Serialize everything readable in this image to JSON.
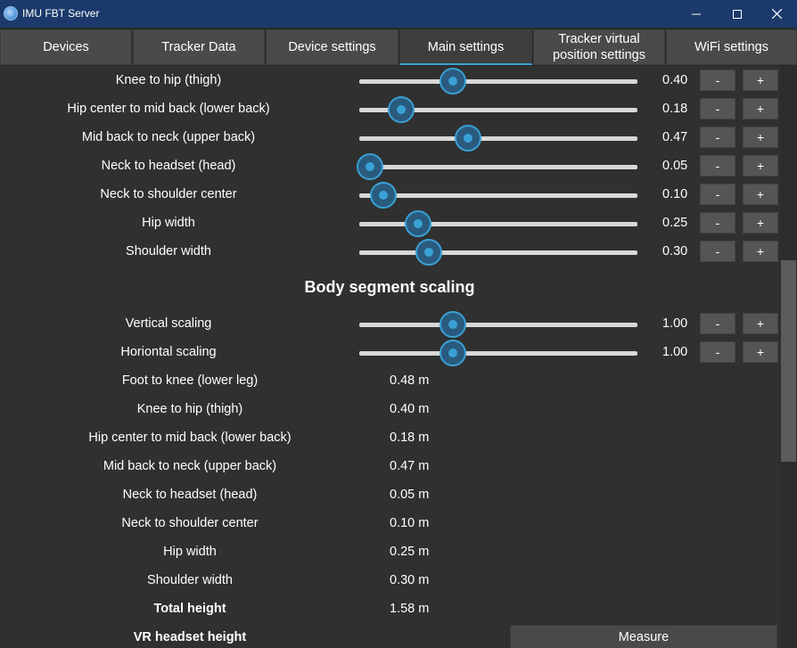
{
  "window": {
    "title": "IMU FBT Server",
    "controls": {
      "minimize": "minimize-icon",
      "maximize": "maximize-icon",
      "close": "close-icon"
    }
  },
  "tabs": [
    {
      "label": "Devices",
      "active": false
    },
    {
      "label": "Tracker Data",
      "active": false
    },
    {
      "label": "Device settings",
      "active": false
    },
    {
      "label": "Main settings",
      "active": true
    },
    {
      "label": "Tracker virtual\nposition settings",
      "active": false
    },
    {
      "label": "WiFi settings",
      "active": false
    }
  ],
  "segment_sliders": [
    {
      "label": "Knee to hip (thigh)",
      "value": "0.40",
      "fraction": 0.335,
      "minus": "-",
      "plus": "+"
    },
    {
      "label": "Hip center to mid back (lower back)",
      "value": "0.18",
      "fraction": 0.15,
      "minus": "-",
      "plus": "+"
    },
    {
      "label": "Mid back to neck (upper back)",
      "value": "0.47",
      "fraction": 0.39,
      "minus": "-",
      "plus": "+"
    },
    {
      "label": "Neck to headset (head)",
      "value": "0.05",
      "fraction": 0.04,
      "minus": "-",
      "plus": "+"
    },
    {
      "label": "Neck to shoulder center",
      "value": "0.10",
      "fraction": 0.085,
      "minus": "-",
      "plus": "+"
    },
    {
      "label": "Hip width",
      "value": "0.25",
      "fraction": 0.21,
      "minus": "-",
      "plus": "+"
    },
    {
      "label": "Shoulder width",
      "value": "0.30",
      "fraction": 0.25,
      "minus": "-",
      "plus": "+"
    }
  ],
  "scaling_section": {
    "title": "Body segment scaling",
    "sliders": [
      {
        "label": "Vertical scaling",
        "value": "1.00",
        "fraction": 0.335,
        "minus": "-",
        "plus": "+"
      },
      {
        "label": "Horiontal scaling",
        "value": "1.00",
        "fraction": 0.335,
        "minus": "-",
        "plus": "+"
      }
    ]
  },
  "measurements": [
    {
      "label": "Foot to knee (lower leg)",
      "value": "0.48 m"
    },
    {
      "label": "Knee to hip (thigh)",
      "value": "0.40 m"
    },
    {
      "label": "Hip center to mid back (lower back)",
      "value": "0.18 m"
    },
    {
      "label": "Mid back to neck (upper back)",
      "value": "0.47 m"
    },
    {
      "label": "Neck to headset (head)",
      "value": "0.05 m"
    },
    {
      "label": "Neck to shoulder center",
      "value": "0.10 m"
    },
    {
      "label": "Hip width",
      "value": "0.25 m"
    },
    {
      "label": "Shoulder width",
      "value": "0.30 m"
    }
  ],
  "total_height": {
    "label": "Total height",
    "value": "1.58 m"
  },
  "vr_headset": {
    "label": "VR headset height",
    "button": "Measure"
  },
  "colors": {
    "accent": "#39a1d6",
    "titlebar": "#1b3a6b",
    "background": "#303030"
  },
  "scrollbar": {
    "position": 0.45
  }
}
